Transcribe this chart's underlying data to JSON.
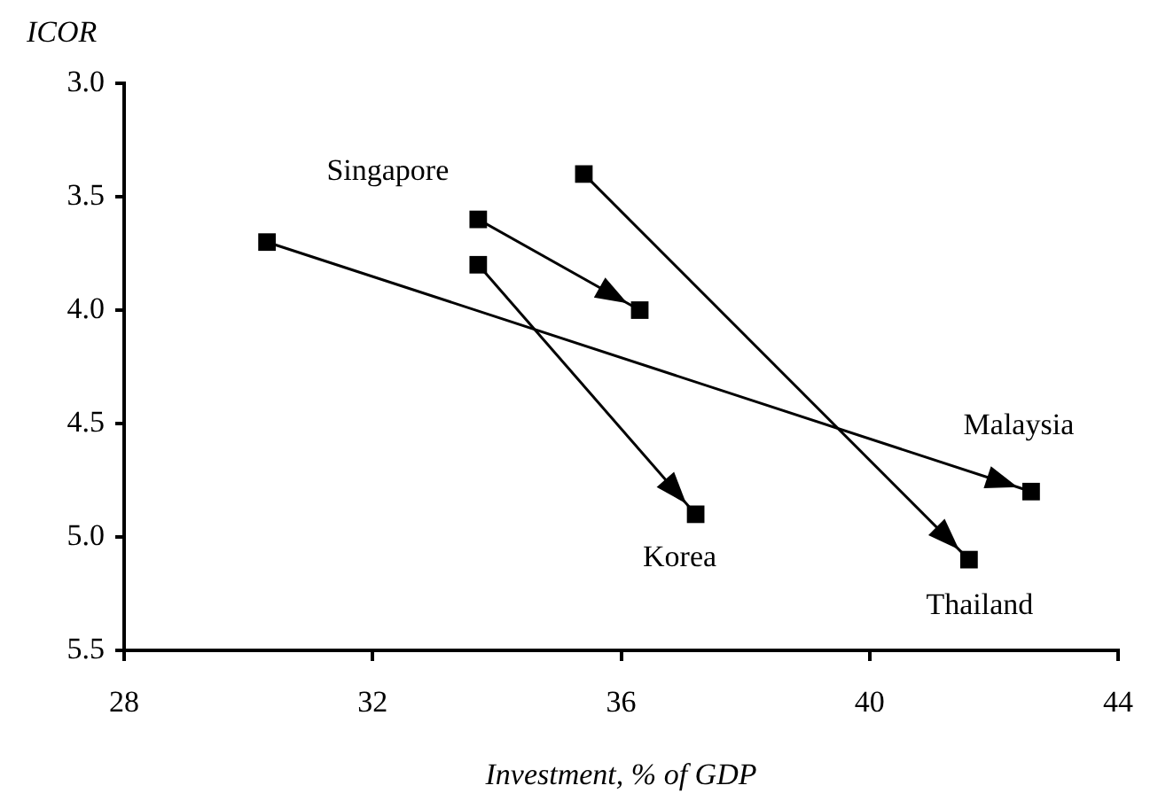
{
  "chart_data": {
    "type": "line",
    "xlabel": "Investment, % of GDP",
    "ylabel": "ICOR",
    "xlim": [
      28,
      44
    ],
    "xticks": [
      28,
      32,
      36,
      40,
      44
    ],
    "ylim": [
      5.5,
      3.0
    ],
    "yticks": [
      {
        "value": 3.0,
        "label": "3.0"
      },
      {
        "value": 3.5,
        "label": "3.5"
      },
      {
        "value": 4.0,
        "label": "4.0"
      },
      {
        "value": 4.5,
        "label": "4.5"
      },
      {
        "value": 5.0,
        "label": "5.0"
      },
      {
        "value": 5.5,
        "label": "5.5"
      }
    ],
    "grid": false,
    "legend": false,
    "marker": "square",
    "line_style": "solid",
    "series": [
      {
        "name": "Singapore",
        "color": "#000000",
        "x": [
          33.7,
          36.3
        ],
        "values": [
          3.6,
          4.0
        ]
      },
      {
        "name": "Malaysia",
        "color": "#000000",
        "x": [
          30.3,
          42.6
        ],
        "values": [
          3.7,
          4.8
        ]
      },
      {
        "name": "Korea",
        "color": "#000000",
        "x": [
          33.7,
          37.2
        ],
        "values": [
          3.8,
          4.9
        ]
      },
      {
        "name": "Thailand",
        "color": "#000000",
        "x": [
          35.4,
          41.6
        ],
        "values": [
          3.4,
          5.1
        ]
      }
    ]
  }
}
